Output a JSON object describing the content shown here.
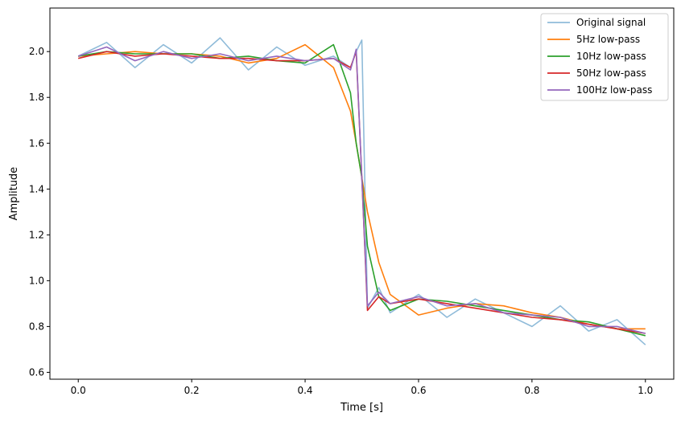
{
  "chart_data": {
    "type": "line",
    "title": "",
    "xlabel": "Time [s]",
    "ylabel": "Amplitude",
    "xlim": [
      -0.05,
      1.05
    ],
    "ylim": [
      0.57,
      2.19
    ],
    "grid": false,
    "legend_position": "top-right",
    "x_ticks": [
      0.0,
      0.2,
      0.4,
      0.6,
      0.8,
      1.0
    ],
    "x_tick_labels": [
      "0.0",
      "0.2",
      "0.4",
      "0.6",
      "0.8",
      "1.0"
    ],
    "y_ticks": [
      0.6,
      0.8,
      1.0,
      1.2,
      1.4,
      1.6,
      1.8,
      2.0
    ],
    "y_tick_labels": [
      "0.6",
      "0.8",
      "1.0",
      "1.2",
      "1.4",
      "1.6",
      "1.8",
      "2.0"
    ],
    "x": [
      0.0,
      0.05,
      0.1,
      0.15,
      0.2,
      0.25,
      0.3,
      0.35,
      0.4,
      0.45,
      0.48,
      0.49,
      0.5,
      0.51,
      0.53,
      0.55,
      0.6,
      0.65,
      0.7,
      0.75,
      0.8,
      0.85,
      0.9,
      0.95,
      1.0
    ],
    "series": [
      {
        "name": "Original signal",
        "color": "#1f77b4",
        "opacity": 0.5,
        "values": [
          1.98,
          2.04,
          1.93,
          2.03,
          1.95,
          2.06,
          1.92,
          2.02,
          1.94,
          1.98,
          1.93,
          2.0,
          2.05,
          0.88,
          0.97,
          0.86,
          0.94,
          0.84,
          0.92,
          0.86,
          0.8,
          0.89,
          0.78,
          0.83,
          0.72
        ]
      },
      {
        "name": "5Hz low-pass",
        "color": "#ff7f0e",
        "opacity": 1,
        "values": [
          1.98,
          1.99,
          2.0,
          1.99,
          1.99,
          1.98,
          1.95,
          1.97,
          2.03,
          1.93,
          1.74,
          1.6,
          1.45,
          1.3,
          1.08,
          0.94,
          0.85,
          0.88,
          0.9,
          0.89,
          0.86,
          0.84,
          0.81,
          0.79,
          0.79
        ]
      },
      {
        "name": "10Hz low-pass",
        "color": "#2ca02c",
        "opacity": 1,
        "values": [
          1.98,
          2.0,
          1.99,
          1.99,
          1.99,
          1.97,
          1.98,
          1.96,
          1.95,
          2.03,
          1.82,
          1.6,
          1.45,
          1.15,
          0.93,
          0.87,
          0.92,
          0.91,
          0.89,
          0.87,
          0.85,
          0.83,
          0.82,
          0.79,
          0.76
        ]
      },
      {
        "name": "50Hz low-pass",
        "color": "#d62728",
        "opacity": 1,
        "values": [
          1.97,
          2.0,
          1.98,
          1.99,
          1.98,
          1.97,
          1.97,
          1.96,
          1.96,
          1.97,
          1.93,
          2.0,
          1.45,
          0.87,
          0.93,
          0.9,
          0.92,
          0.9,
          0.88,
          0.86,
          0.84,
          0.83,
          0.81,
          0.79,
          0.77
        ]
      },
      {
        "name": "100Hz low-pass",
        "color": "#9467bd",
        "opacity": 1,
        "values": [
          1.98,
          2.02,
          1.96,
          2.0,
          1.97,
          1.99,
          1.96,
          1.98,
          1.96,
          1.97,
          1.92,
          2.01,
          1.45,
          0.89,
          0.95,
          0.9,
          0.93,
          0.89,
          0.9,
          0.86,
          0.85,
          0.84,
          0.8,
          0.8,
          0.77
        ]
      }
    ]
  }
}
